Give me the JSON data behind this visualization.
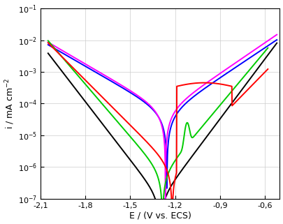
{
  "xlim": [
    -2.1,
    -0.5
  ],
  "ylim_log": [
    -7,
    -1
  ],
  "xlabel": "E / (V vs. ECS)",
  "ylabel": "i / mA cm$^{-2}$",
  "xticks": [
    -2.1,
    -1.8,
    -1.5,
    -1.2,
    -0.9,
    -0.6
  ],
  "xtick_labels": [
    "-2,1",
    "-1,8",
    "-1,5",
    "-1,2",
    "-0,9",
    "-0,6"
  ],
  "yticks": [
    1e-07,
    1e-06,
    1e-05,
    0.0001,
    0.001,
    0.01,
    0.1
  ],
  "colors": {
    "black": "#000000",
    "blue": "#0000ff",
    "green": "#00cc00",
    "red": "#ff0000",
    "magenta": "#ff00ff"
  },
  "background": "#ffffff",
  "grid_color": "#cccccc",
  "linewidth": 1.4
}
